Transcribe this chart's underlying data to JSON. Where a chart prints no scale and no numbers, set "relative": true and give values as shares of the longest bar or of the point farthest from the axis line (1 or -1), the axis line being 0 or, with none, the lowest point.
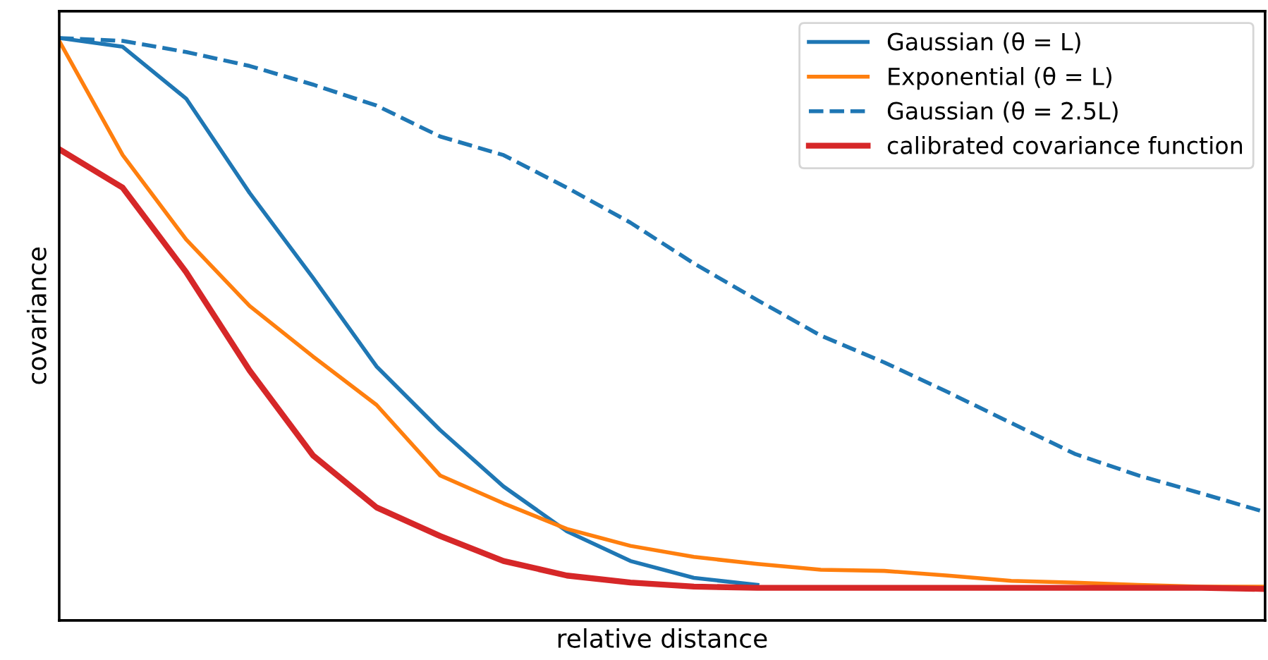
{
  "chart_data": {
    "type": "line",
    "relative": true,
    "xlabel": "relative distance",
    "ylabel": "covariance",
    "categories": [
      null,
      null,
      null,
      null,
      null,
      null,
      null,
      null,
      null,
      null,
      null,
      null,
      null,
      null,
      null,
      null,
      null,
      null,
      null,
      null
    ],
    "series": [
      {
        "name": "Gaussian (θ = L)",
        "color": "#1f77b4",
        "line_style": "solid",
        "values": [
          1.0,
          0.985,
          0.896,
          0.734,
          0.588,
          0.436,
          0.327,
          0.23,
          0.153,
          0.102,
          0.073,
          0.061,
          null,
          null,
          null,
          null,
          null,
          null,
          null,
          null
        ]
      },
      {
        "name": "Exponential (θ = L)",
        "color": "#ff7f0e",
        "line_style": "solid",
        "values": [
          0.995,
          0.799,
          0.654,
          0.54,
          0.453,
          0.37,
          0.249,
          0.201,
          0.157,
          0.128,
          0.109,
          0.097,
          0.087,
          0.085,
          0.077,
          0.068,
          0.065,
          0.061,
          0.058,
          0.058
        ]
      },
      {
        "name": "Gaussian (θ = 2.5L)",
        "color": "#1f77b4",
        "line_style": "dashed",
        "values": [
          1.0,
          0.995,
          0.976,
          0.952,
          0.92,
          0.884,
          0.831,
          0.799,
          0.743,
          0.683,
          0.613,
          0.55,
          0.489,
          0.443,
          0.392,
          0.339,
          0.286,
          0.249,
          0.218,
          0.186
        ]
      },
      {
        "name": "calibrated covariance function",
        "color": "#d62728",
        "line_style": "solid",
        "values": [
          0.809,
          0.743,
          0.598,
          0.429,
          0.283,
          0.194,
          0.145,
          0.102,
          0.077,
          0.065,
          0.058,
          0.056,
          0.056,
          0.056,
          0.056,
          0.056,
          0.056,
          0.056,
          0.056,
          0.054
        ]
      }
    ],
    "legend": "top right"
  }
}
